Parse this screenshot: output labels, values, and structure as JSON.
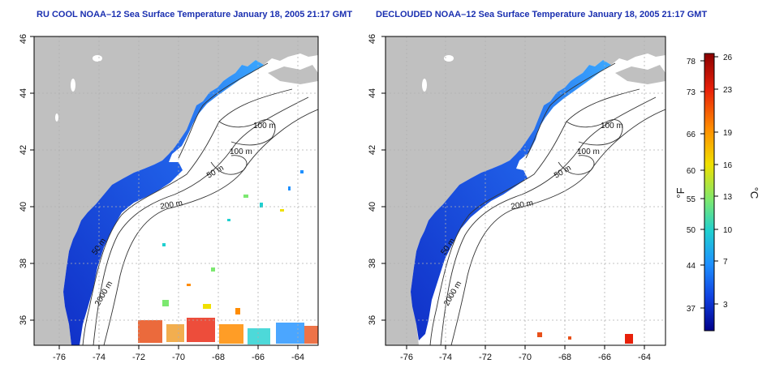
{
  "panels": [
    {
      "title": "RU COOL NOAA–12 Sea Surface Temperature January 18, 2005 21:17 GMT",
      "x_ticks": [
        "-76",
        "-74",
        "-72",
        "-70",
        "-68",
        "-66",
        "-64"
      ],
      "y_ticks": [
        "36",
        "38",
        "40",
        "42",
        "44",
        "46"
      ],
      "contour_labels": [
        "100 m",
        "100 m",
        "50 m",
        "200 m",
        "50 m",
        "2000 m"
      ]
    },
    {
      "title": "DECLOUDED NOAA–12 Sea Surface Temperature January 18, 2005 21:17 GMT",
      "x_ticks": [
        "-76",
        "-74",
        "-72",
        "-70",
        "-68",
        "-66",
        "-64"
      ],
      "y_ticks": [
        "36",
        "38",
        "40",
        "42",
        "44",
        "46"
      ],
      "contour_labels": [
        "100 m",
        "100 m",
        "50 m",
        "200 m",
        "50 m",
        "2000 m"
      ]
    }
  ],
  "colorbar": {
    "fahrenheit_labels": [
      "78",
      "73",
      "66",
      "60",
      "55",
      "50",
      "44",
      "37"
    ],
    "celsius_labels": [
      "26",
      "23",
      "19",
      "16",
      "13",
      "10",
      "7",
      "3"
    ],
    "fahrenheit_unit": "°F",
    "celsius_unit": "°C",
    "gradient_colors": [
      "#8b0000",
      "#e8200a",
      "#ff8c00",
      "#f0e000",
      "#7ce870",
      "#20d0d0",
      "#1e90ff",
      "#1040e0",
      "#00008b"
    ]
  },
  "colors": {
    "land": "#c0c0c0",
    "shelf_water_dark": "#1030c8",
    "shelf_water_light": "#3aa8ff",
    "warm_patches": "#e8501a",
    "grid": "#b0b0b0"
  }
}
